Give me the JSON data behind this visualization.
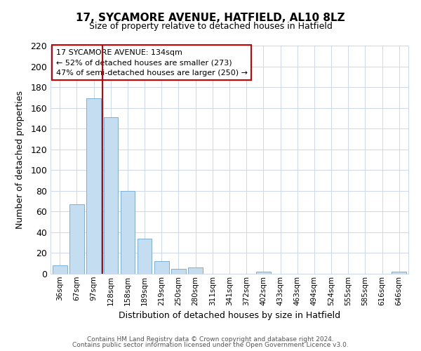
{
  "title": "17, SYCAMORE AVENUE, HATFIELD, AL10 8LZ",
  "subtitle": "Size of property relative to detached houses in Hatfield",
  "xlabel": "Distribution of detached houses by size in Hatfield",
  "ylabel": "Number of detached properties",
  "bar_labels": [
    "36sqm",
    "67sqm",
    "97sqm",
    "128sqm",
    "158sqm",
    "189sqm",
    "219sqm",
    "250sqm",
    "280sqm",
    "311sqm",
    "341sqm",
    "372sqm",
    "402sqm",
    "433sqm",
    "463sqm",
    "494sqm",
    "524sqm",
    "555sqm",
    "585sqm",
    "616sqm",
    "646sqm"
  ],
  "bar_heights": [
    8,
    67,
    169,
    151,
    80,
    34,
    12,
    5,
    6,
    0,
    0,
    0,
    2,
    0,
    0,
    0,
    0,
    0,
    0,
    0,
    2
  ],
  "bar_color": "#c5ddf0",
  "bar_edge_color": "#7bafd4",
  "vline_color": "#cc0000",
  "annotation_box_text": "17 SYCAMORE AVENUE: 134sqm\n← 52% of detached houses are smaller (273)\n47% of semi-detached houses are larger (250) →",
  "box_edge_color": "#cc0000",
  "ylim": [
    0,
    220
  ],
  "yticks": [
    0,
    20,
    40,
    60,
    80,
    100,
    120,
    140,
    160,
    180,
    200,
    220
  ],
  "footer_line1": "Contains HM Land Registry data © Crown copyright and database right 2024.",
  "footer_line2": "Contains public sector information licensed under the Open Government Licence v3.0.",
  "background_color": "#ffffff",
  "grid_color": "#ccd8ea"
}
